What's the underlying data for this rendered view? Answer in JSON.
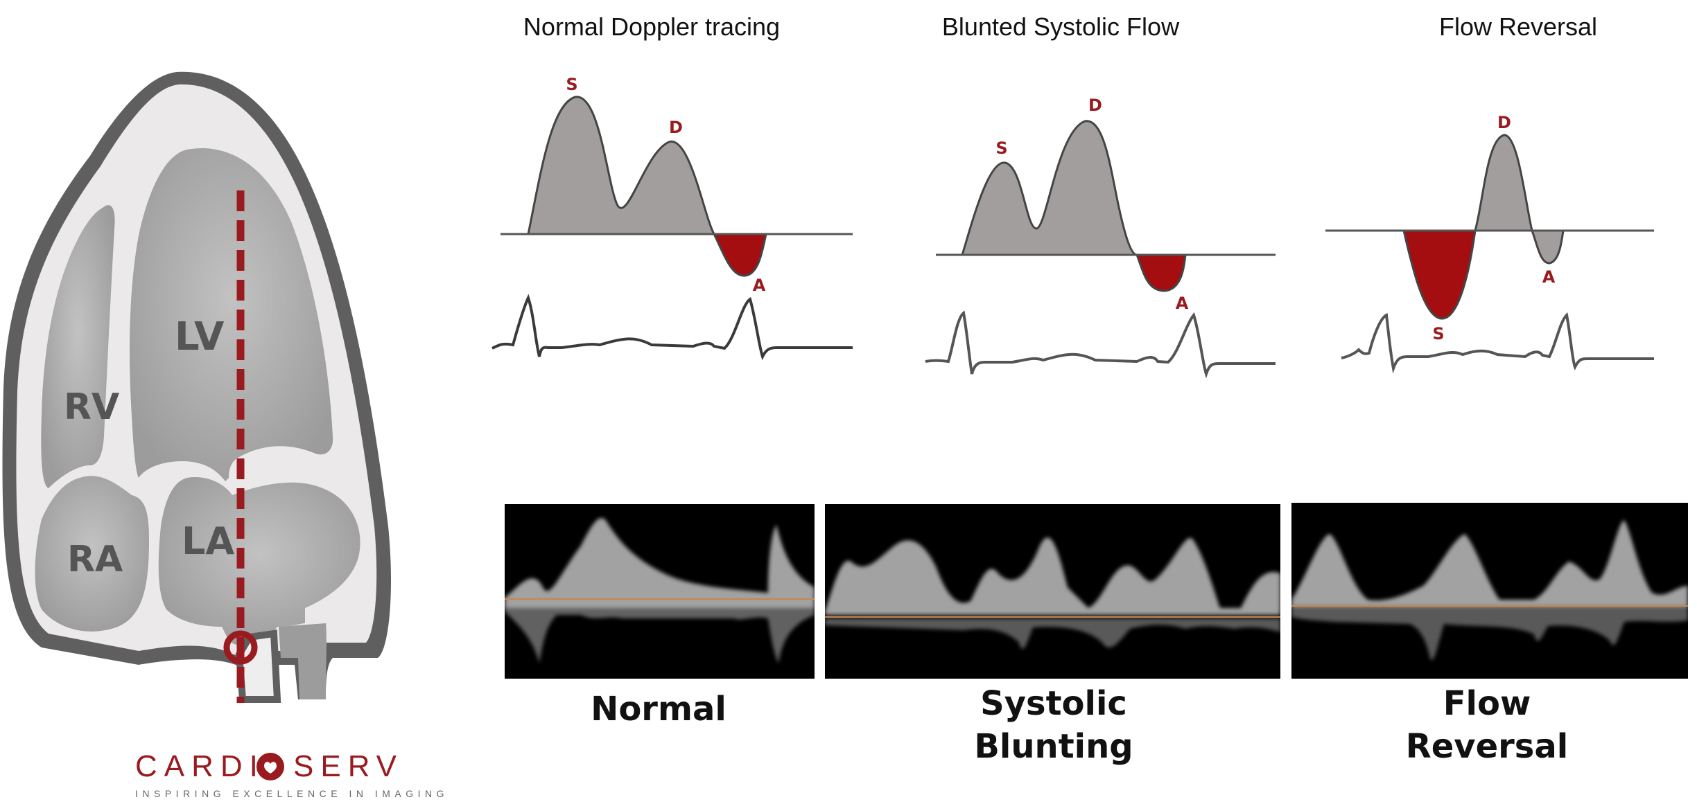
{
  "heart": {
    "labels": {
      "lv": "LV",
      "rv": "RV",
      "ra": "RA",
      "la": "LA"
    }
  },
  "logo": {
    "text_left": "CARDI",
    "text_right": "SERV",
    "tagline": "INSPIRING EXCELLENCE IN IMAGING"
  },
  "panels": [
    {
      "title": "Normal Doppler tracing",
      "caption_lines": [
        "Normal"
      ],
      "wave_labels": {
        "s": "S",
        "d": "D",
        "a": "A"
      }
    },
    {
      "title": "Blunted Systolic Flow",
      "caption_lines": [
        "Systolic",
        "Blunting"
      ],
      "wave_labels": {
        "s": "S",
        "d": "D",
        "a": "A"
      }
    },
    {
      "title": "Flow Reversal",
      "caption_lines": [
        "Flow",
        "Reversal"
      ],
      "wave_labels": {
        "s": "S",
        "d": "D",
        "a": "A"
      }
    }
  ],
  "colors": {
    "accent_red": "#9a1b1f",
    "wave_fill": "#a39e9e",
    "wave_stroke": "#444444",
    "heart_gray": "#a8a8a8",
    "heart_outline": "#5e5e5e",
    "baseline_orange": "#c8874a"
  }
}
